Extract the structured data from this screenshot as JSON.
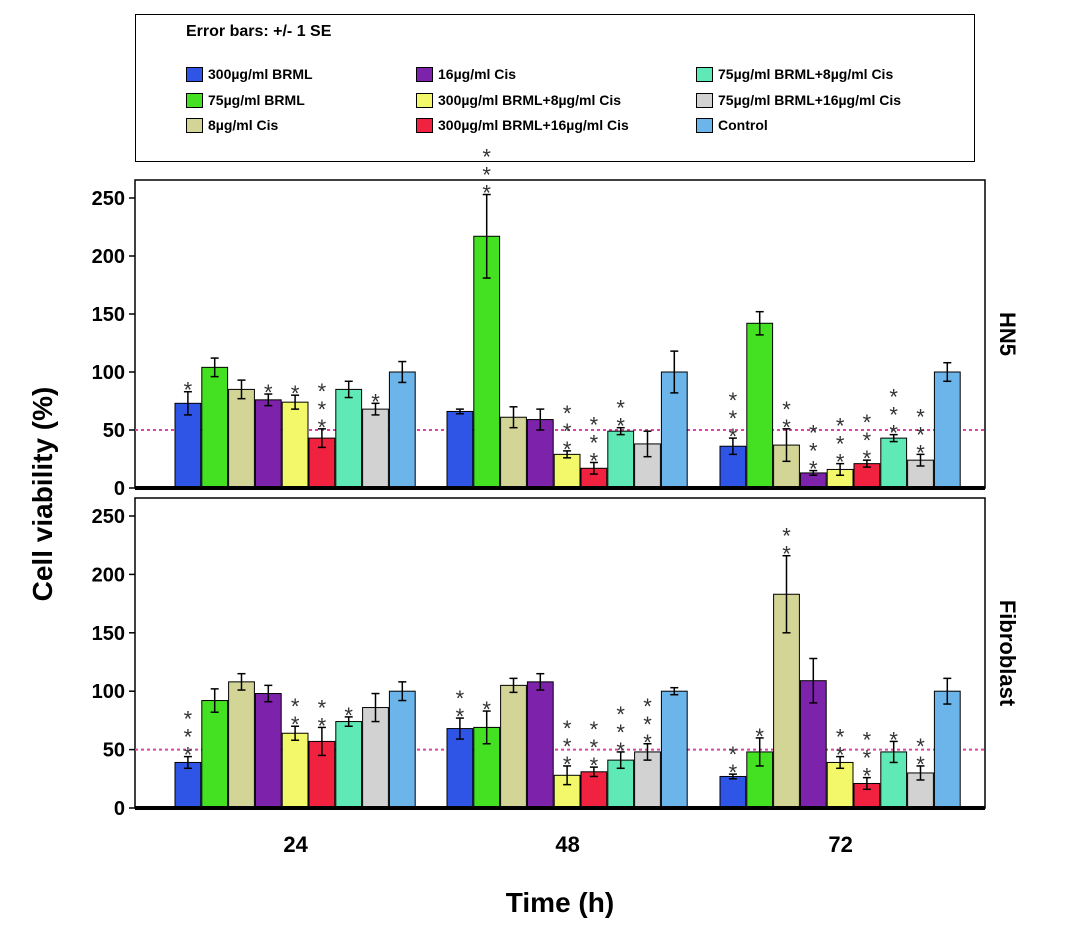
{
  "legend": {
    "title": "Error bars: +/- 1 SE",
    "position": "top",
    "items": [
      {
        "label": "300µg/ml BRML",
        "color": "#2f55e6"
      },
      {
        "label": "75µg/ml BRML",
        "color": "#44e022"
      },
      {
        "label": "8µg/ml Cis",
        "color": "#d3d597"
      },
      {
        "label": "16µg/ml Cis",
        "color": "#7d22aa"
      },
      {
        "label": "300µg/ml BRML+8µg/ml Cis",
        "color": "#f2f86a"
      },
      {
        "label": "300µg/ml BRML+16µg/ml Cis",
        "color": "#f1223f"
      },
      {
        "label": "75µg/ml BRML+8µg/ml Cis",
        "color": "#5ee9b7"
      },
      {
        "label": "75µg/ml BRML+16µg/ml Cis",
        "color": "#d2d2d2"
      },
      {
        "label": "Control",
        "color": "#6bb5eb"
      }
    ]
  },
  "chart_data": {
    "type": "bar",
    "xlabel": "Time (h)",
    "ylabel": "Cell viability (%)",
    "categories": [
      "24",
      "48",
      "72"
    ],
    "ylim": [
      0,
      250
    ],
    "yticks": [
      "0",
      "50",
      "100",
      "150",
      "200",
      "250"
    ],
    "reference_line": {
      "y": 50,
      "color": "#e040a8"
    },
    "panels": [
      {
        "name": "HN5",
        "series": [
          {
            "name": "300µg/ml BRML",
            "values": [
              73,
              66,
              36
            ],
            "errors": [
              10,
              2,
              7
            ],
            "stars": [
              "*",
              "",
              "***"
            ]
          },
          {
            "name": "75µg/ml BRML",
            "values": [
              104,
              217,
              142
            ],
            "errors": [
              8,
              36,
              10
            ],
            "stars": [
              "",
              "***",
              ""
            ]
          },
          {
            "name": "8µg/ml Cis",
            "values": [
              85,
              61,
              37
            ],
            "errors": [
              8,
              9,
              14
            ],
            "stars": [
              "",
              "",
              "**"
            ]
          },
          {
            "name": "16µg/ml Cis",
            "values": [
              76,
              59,
              13
            ],
            "errors": [
              5,
              9,
              2
            ],
            "stars": [
              "*",
              "",
              "***"
            ]
          },
          {
            "name": "300µg/ml BRML+8µg/ml Cis",
            "values": [
              74,
              29,
              16
            ],
            "errors": [
              6,
              3,
              5
            ],
            "stars": [
              "*",
              "***",
              "***"
            ]
          },
          {
            "name": "300µg/ml BRML+16µg/ml Cis",
            "values": [
              43,
              17,
              21
            ],
            "errors": [
              8,
              5,
              3
            ],
            "stars": [
              "***",
              "***",
              "***"
            ]
          },
          {
            "name": "75µg/ml BRML+8µg/ml Cis",
            "values": [
              85,
              49,
              43
            ],
            "errors": [
              7,
              3,
              3
            ],
            "stars": [
              "",
              "**",
              "***"
            ]
          },
          {
            "name": "75µg/ml BRML+16µg/ml Cis",
            "values": [
              68,
              38,
              24
            ],
            "errors": [
              5,
              11,
              5
            ],
            "stars": [
              "*",
              "",
              "***"
            ]
          },
          {
            "name": "Control",
            "values": [
              100,
              100,
              100
            ],
            "errors": [
              9,
              18,
              8
            ],
            "stars": [
              "",
              "",
              ""
            ]
          }
        ]
      },
      {
        "name": "Fibroblast",
        "series": [
          {
            "name": "300µg/ml BRML",
            "values": [
              39,
              68,
              27
            ],
            "errors": [
              5,
              9,
              2
            ],
            "stars": [
              "***",
              "**",
              "**"
            ]
          },
          {
            "name": "75µg/ml BRML",
            "values": [
              92,
              69,
              48
            ],
            "errors": [
              10,
              14,
              12
            ],
            "stars": [
              "",
              "*",
              "*"
            ]
          },
          {
            "name": "8µg/ml Cis",
            "values": [
              108,
              105,
              183
            ],
            "errors": [
              7,
              6,
              33
            ],
            "stars": [
              "",
              "",
              "**"
            ]
          },
          {
            "name": "16µg/ml Cis",
            "values": [
              98,
              108,
              109
            ],
            "errors": [
              7,
              7,
              19
            ],
            "stars": [
              "",
              "",
              ""
            ]
          },
          {
            "name": "300µg/ml BRML+8µg/ml Cis",
            "values": [
              64,
              28,
              39
            ],
            "errors": [
              6,
              8,
              5
            ],
            "stars": [
              "**",
              "***",
              "**"
            ]
          },
          {
            "name": "300µg/ml BRML+16µg/ml Cis",
            "values": [
              57,
              31,
              21
            ],
            "errors": [
              12,
              4,
              5
            ],
            "stars": [
              "**",
              "***",
              "***"
            ]
          },
          {
            "name": "75µg/ml BRML+8µg/ml Cis",
            "values": [
              74,
              41,
              48
            ],
            "errors": [
              4,
              7,
              9
            ],
            "stars": [
              "*",
              "***",
              "*"
            ]
          },
          {
            "name": "75µg/ml BRML+16µg/ml Cis",
            "values": [
              86,
              48,
              30
            ],
            "errors": [
              12,
              7,
              6
            ],
            "stars": [
              "",
              "***",
              "**"
            ]
          },
          {
            "name": "Control",
            "values": [
              100,
              100,
              100
            ],
            "errors": [
              8,
              3,
              11
            ],
            "stars": [
              "",
              "",
              ""
            ]
          }
        ]
      }
    ]
  }
}
